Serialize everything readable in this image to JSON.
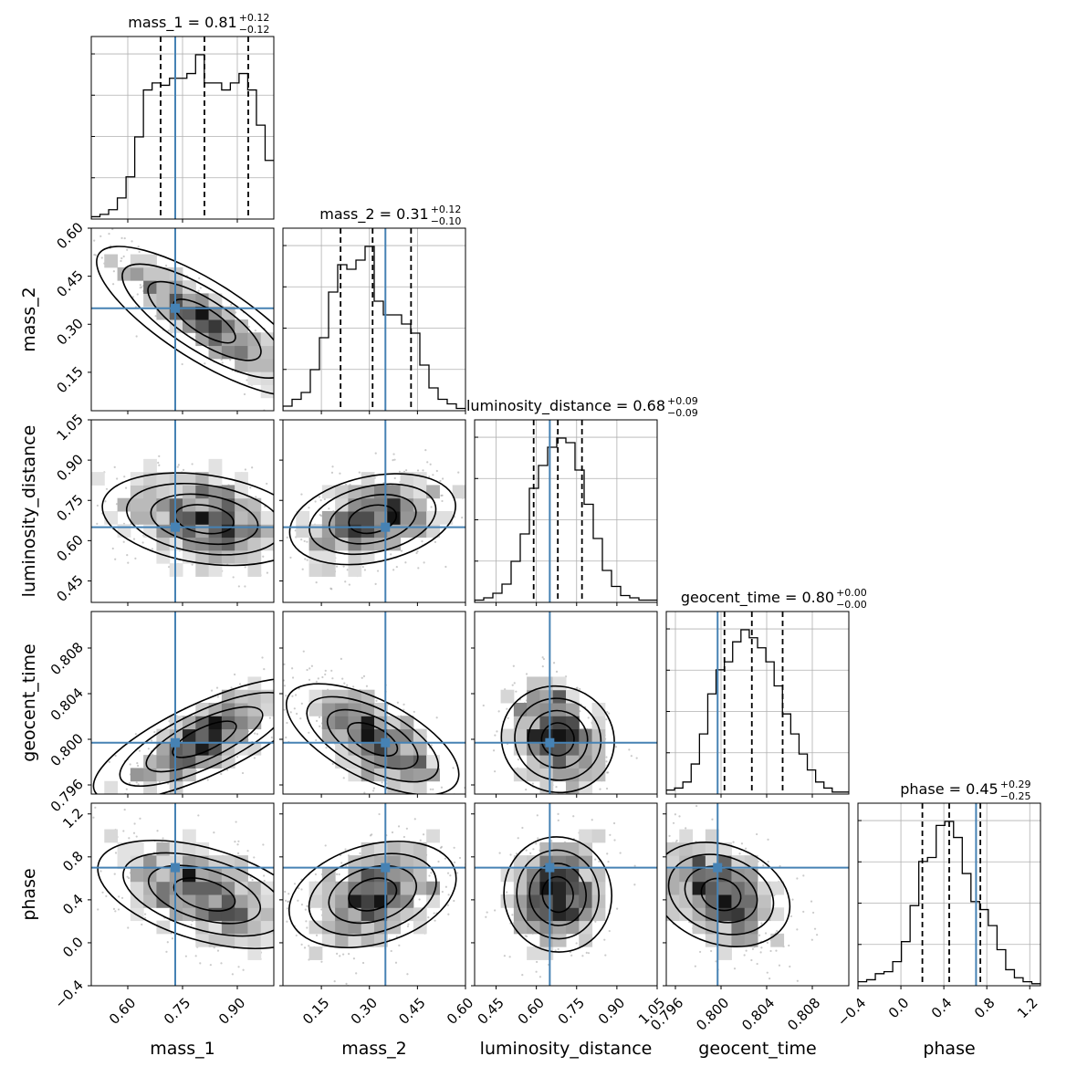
{
  "chart_data": {
    "type": "corner",
    "parameters": [
      {
        "key": "mass_1",
        "label": "mass_1",
        "range": [
          0.5,
          1.0
        ],
        "ticks": [
          "0.60",
          "0.75",
          "0.90"
        ],
        "tick_values": [
          0.6,
          0.75,
          0.9
        ],
        "title": "mass_1 = 0.81",
        "median": 0.81,
        "err_plus": "+0.12",
        "err_minus": "−0.12",
        "truth": 0.73,
        "quantiles": [
          0.69,
          0.81,
          0.93
        ]
      },
      {
        "key": "mass_2",
        "label": "mass_2",
        "range": [
          0.03,
          0.6
        ],
        "ticks": [
          "0.15",
          "0.30",
          "0.45",
          "0.60"
        ],
        "tick_values": [
          0.15,
          0.3,
          0.45,
          0.6
        ],
        "title": "mass_2 = 0.31",
        "median": 0.31,
        "err_plus": "+0.12",
        "err_minus": "−0.10",
        "truth": 0.35,
        "quantiles": [
          0.21,
          0.31,
          0.43
        ]
      },
      {
        "key": "luminosity_distance",
        "label": "luminosity_distance",
        "range": [
          0.37,
          1.05
        ],
        "ticks": [
          "0.45",
          "0.60",
          "0.75",
          "0.90",
          "1.05"
        ],
        "tick_values": [
          0.45,
          0.6,
          0.75,
          0.9,
          1.05
        ],
        "title": "luminosity_distance = 0.68",
        "median": 0.68,
        "err_plus": "+0.09",
        "err_minus": "−0.09",
        "truth": 0.65,
        "quantiles": [
          0.59,
          0.68,
          0.77
        ]
      },
      {
        "key": "geocent_time",
        "label": "geocent_time",
        "range": [
          0.7952,
          0.8112
        ],
        "ticks": [
          "0.796",
          "0.800",
          "0.804",
          "0.808"
        ],
        "tick_values": [
          0.796,
          0.8,
          0.804,
          0.808
        ],
        "title": "geocent_time = 0.80",
        "median": 0.8,
        "err_plus": "+0.00",
        "err_minus": "−0.00",
        "truth": 0.7997,
        "quantiles": [
          0.8003,
          0.8027,
          0.8054
        ]
      },
      {
        "key": "phase",
        "label": "phase",
        "range": [
          -0.4,
          1.3
        ],
        "ticks": [
          "−0.4",
          "0.0",
          "0.4",
          "0.8",
          "1.2"
        ],
        "tick_values": [
          -0.4,
          0.0,
          0.4,
          0.8,
          1.2
        ],
        "title": "phase = 0.45",
        "median": 0.45,
        "err_plus": "+0.29",
        "err_minus": "−0.25",
        "truth": 0.7,
        "quantiles": [
          0.2,
          0.45,
          0.74
        ]
      }
    ],
    "histograms": [
      {
        "param": "mass_1",
        "bins_start": 0.5,
        "bins_end": 1.0,
        "counts": [
          1,
          2,
          4,
          9,
          18,
          35,
          55,
          58,
          57,
          60,
          60,
          62,
          70,
          58,
          58,
          55,
          58,
          62,
          55,
          40,
          25
        ]
      },
      {
        "param": "mass_2",
        "bins_start": 0.03,
        "bins_end": 0.6,
        "counts": [
          2,
          5,
          8,
          18,
          32,
          52,
          64,
          62,
          66,
          72,
          48,
          42,
          42,
          38,
          34,
          20,
          10,
          5,
          3,
          1
        ]
      },
      {
        "param": "luminosity_distance",
        "bins_start": 0.37,
        "bins_end": 1.05,
        "counts": [
          1,
          2,
          4,
          8,
          18,
          30,
          50,
          60,
          68,
          72,
          70,
          58,
          43,
          28,
          14,
          7,
          3,
          2,
          1,
          1
        ]
      },
      {
        "param": "geocent_time",
        "bins_start": 0.7952,
        "bins_end": 0.8112,
        "counts": [
          2,
          3,
          6,
          15,
          30,
          50,
          62,
          66,
          76,
          82,
          78,
          73,
          66,
          54,
          40,
          30,
          20,
          12,
          6,
          3,
          1,
          1
        ]
      },
      {
        "param": "phase",
        "bins_start": -0.4,
        "bins_end": 1.3,
        "counts": [
          2,
          3,
          6,
          7,
          12,
          22,
          40,
          62,
          64,
          80,
          82,
          74,
          56,
          42,
          38,
          30,
          18,
          8,
          4,
          2,
          1
        ]
      }
    ],
    "correlations": {
      "mass_2|mass_1": -0.9,
      "luminosity_distance|mass_1": -0.3,
      "luminosity_distance|mass_2": 0.35,
      "geocent_time|mass_1": 0.8,
      "geocent_time|mass_2": -0.7,
      "geocent_time|luminosity_distance": -0.3,
      "phase|mass_1": -0.5,
      "phase|mass_2": 0.4,
      "phase|luminosity_distance": 0.15,
      "phase|geocent_time": -0.4
    },
    "colors": {
      "truth": "#4682b4",
      "histogram": "#000000",
      "quantile": "#000000",
      "scatter": "#9a9a9a"
    }
  }
}
